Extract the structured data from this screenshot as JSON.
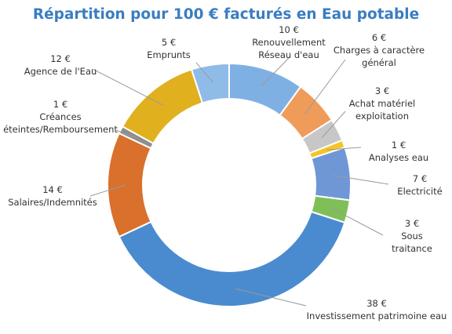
{
  "chart_data": {
    "type": "pie",
    "variant": "donut",
    "title": "Répartition pour 100 € facturés en Eau potable",
    "unit": "€",
    "legend": "none",
    "slices": [
      {
        "label_lines": [
          "Renouvellement",
          "Réseau d'eau"
        ],
        "value_text": "10 €",
        "value": 10,
        "color": "#7fb0e4"
      },
      {
        "label_lines": [
          "Charges à caractère",
          "général"
        ],
        "value_text": "6 €",
        "value": 6,
        "color": "#ef9b5a"
      },
      {
        "label_lines": [
          "Achat matériel",
          "exploitation"
        ],
        "value_text": "3 €",
        "value": 3,
        "color": "#c7c7c7"
      },
      {
        "label_lines": [
          "Analyses eau"
        ],
        "value_text": "1 €",
        "value": 1,
        "color": "#f5c426"
      },
      {
        "label_lines": [
          "Electricité"
        ],
        "value_text": "7 €",
        "value": 7,
        "color": "#6f97d6"
      },
      {
        "label_lines": [
          "Sous",
          "traitance"
        ],
        "value_text": "3 €",
        "value": 3,
        "color": "#7fbf58"
      },
      {
        "label_lines": [
          "Investissement patrimoine eau"
        ],
        "value_text": "38 €",
        "value": 38,
        "color": "#4a8bd0"
      },
      {
        "label_lines": [
          "Salaires/Indemnités"
        ],
        "value_text": "14 €",
        "value": 14,
        "color": "#d9702b"
      },
      {
        "label_lines": [
          "Créances",
          "éteintes/Remboursement"
        ],
        "value_text": "1 €",
        "value": 1,
        "color": "#8e8e8e"
      },
      {
        "label_lines": [
          "Agence de l'Eau"
        ],
        "value_text": "12 €",
        "value": 12,
        "color": "#e0b01f"
      },
      {
        "label_lines": [
          "Emprunts"
        ],
        "value_text": "5 €",
        "value": 5,
        "color": "#8fbbe8"
      }
    ]
  }
}
